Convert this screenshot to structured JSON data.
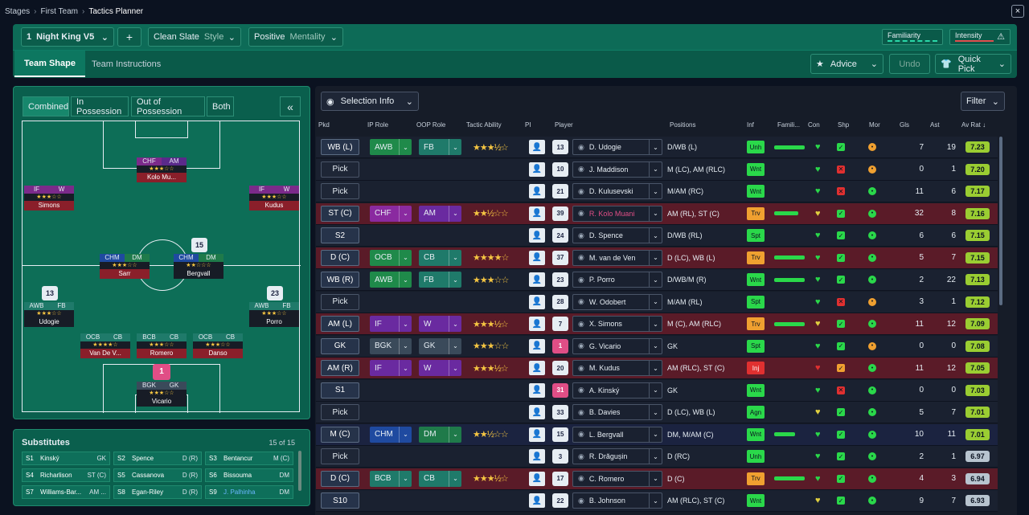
{
  "breadcrumb": {
    "item1": "Stages",
    "item2": "First Team",
    "item3": "Tactics Planner"
  },
  "toolbar": {
    "tactic_num": "1",
    "tactic_name": "Night King V5",
    "add": "+",
    "style_value": "Clean Slate",
    "style_label": "Style",
    "mentality_value": "Positive",
    "mentality_label": "Mentality",
    "familiarity": "Familiarity",
    "intensity": "Intensity",
    "advice": "Advice",
    "undo": "Undo",
    "quick_pick": "Quick Pick"
  },
  "tabs": {
    "shape": "Team Shape",
    "instructions": "Team Instructions"
  },
  "view": {
    "combined": "Combined",
    "in_possession": "In Possession",
    "out_possession": "Out of Possession",
    "both": "Both",
    "collapse": "«"
  },
  "pitch": {
    "players": [
      {
        "r1": "CHF",
        "r2": "AM",
        "stars": "★★★☆☆",
        "name": "Kolo Mu..."
      },
      {
        "r1": "IF",
        "r2": "W",
        "stars": "★★★☆☆",
        "name": "Simons"
      },
      {
        "r1": "IF",
        "r2": "W",
        "stars": "★★★☆☆",
        "name": "Kudus"
      },
      {
        "r1": "CHM",
        "r2": "DM",
        "stars": "★★★☆☆",
        "name": "Sarr"
      },
      {
        "r1": "CHM",
        "r2": "DM",
        "stars": "★★☆☆☆",
        "name": "Bergvall",
        "num": "15"
      },
      {
        "r1": "AWB",
        "r2": "FB",
        "stars": "★★★☆☆",
        "name": "Udogie",
        "num": "13"
      },
      {
        "r1": "AWB",
        "r2": "FB",
        "stars": "★★★☆☆",
        "name": "Porro",
        "num": "23"
      },
      {
        "r1": "OCB",
        "r2": "CB",
        "stars": "★★★★☆",
        "name": "Van De V..."
      },
      {
        "r1": "BCB",
        "r2": "CB",
        "stars": "★★★☆☆",
        "name": "Romero"
      },
      {
        "r1": "OCB",
        "r2": "CB",
        "stars": "★★★☆☆",
        "name": "Danso"
      },
      {
        "r1": "BGK",
        "r2": "GK",
        "stars": "★★★☆☆",
        "name": "Vicario",
        "num": "1"
      }
    ]
  },
  "subs": {
    "title": "Substitutes",
    "count": "15 of 15",
    "items": [
      {
        "code": "S1",
        "name": "Kinský",
        "pos": "GK"
      },
      {
        "code": "S2",
        "name": "Spence",
        "pos": "D (R)"
      },
      {
        "code": "S3",
        "name": "Bentancur",
        "pos": "M (C)"
      },
      {
        "code": "S4",
        "name": "Richarlison",
        "pos": "ST (C)"
      },
      {
        "code": "S5",
        "name": "Cassanova",
        "pos": "D (R)"
      },
      {
        "code": "S6",
        "name": "Bissouma",
        "pos": "DM"
      },
      {
        "code": "S7",
        "name": "Williams-Bar...",
        "pos": "AM ..."
      },
      {
        "code": "S8",
        "name": "Egan-Riley",
        "pos": "D (R)"
      },
      {
        "code": "S9",
        "name": "J. Palhinha",
        "pos": "DM"
      }
    ]
  },
  "table": {
    "selection_info": "Selection Info",
    "filter": "Filter",
    "headers": {
      "pkd": "Pkd",
      "ip": "IP Role",
      "oop": "OOP Role",
      "ability": "Tactic Ability",
      "pi": "PI",
      "player": "Player",
      "positions": "Positions",
      "inf": "Inf",
      "fam": "Famili...",
      "con": "Con",
      "shp": "Shp",
      "mor": "Mor",
      "gls": "Gls",
      "ast": "Ast",
      "avrat": "Av Rat"
    },
    "rows": [
      {
        "pkd": "WB (L)",
        "ip": "AWB",
        "oop": "FB",
        "stars": "★★★½☆",
        "num": "13",
        "player": "D. Udogie",
        "pos": "D/WB (L)",
        "inf": "Unh",
        "gls": "7",
        "ast": "19",
        "avr": "7.23"
      },
      {
        "pkd": "Pick",
        "ip": "",
        "oop": "",
        "stars": "",
        "num": "10",
        "player": "J. Maddison",
        "pos": "M (LC), AM (RLC)",
        "inf": "Wnt",
        "gls": "0",
        "ast": "1",
        "avr": "7.20"
      },
      {
        "pkd": "Pick",
        "ip": "",
        "oop": "",
        "stars": "",
        "num": "21",
        "player": "D. Kulusevski",
        "pos": "M/AM (RC)",
        "inf": "Wnt",
        "gls": "11",
        "ast": "6",
        "avr": "7.17"
      },
      {
        "pkd": "ST (C)",
        "ip": "CHF",
        "oop": "AM",
        "stars": "★★½☆☆",
        "num": "39",
        "player": "R. Kolo Muani",
        "pos": "AM (RL), ST (C)",
        "inf": "Trv",
        "gls": "32",
        "ast": "8",
        "avr": "7.16"
      },
      {
        "pkd": "S2",
        "ip": "",
        "oop": "",
        "stars": "",
        "num": "24",
        "player": "D. Spence",
        "pos": "D/WB (RL)",
        "inf": "Spt",
        "gls": "6",
        "ast": "6",
        "avr": "7.15"
      },
      {
        "pkd": "D (C)",
        "ip": "OCB",
        "oop": "CB",
        "stars": "★★★★☆",
        "num": "37",
        "player": "M. van de Ven",
        "pos": "D (LC), WB (L)",
        "inf": "Trv",
        "gls": "5",
        "ast": "7",
        "avr": "7.15"
      },
      {
        "pkd": "WB (R)",
        "ip": "AWB",
        "oop": "FB",
        "stars": "★★★☆☆",
        "num": "23",
        "player": "P. Porro",
        "pos": "D/WB/M (R)",
        "inf": "Wnt",
        "gls": "2",
        "ast": "22",
        "avr": "7.13"
      },
      {
        "pkd": "Pick",
        "ip": "",
        "oop": "",
        "stars": "",
        "num": "28",
        "player": "W. Odobert",
        "pos": "M/AM (RL)",
        "inf": "Spt",
        "gls": "3",
        "ast": "1",
        "avr": "7.12"
      },
      {
        "pkd": "AM (L)",
        "ip": "IF",
        "oop": "W",
        "stars": "★★★½☆",
        "num": "7",
        "player": "X. Simons",
        "pos": "M (C), AM (RLC)",
        "inf": "Trv",
        "gls": "11",
        "ast": "12",
        "avr": "7.09"
      },
      {
        "pkd": "GK",
        "ip": "BGK",
        "oop": "GK",
        "stars": "★★★☆☆",
        "num": "1",
        "player": "G. Vicario",
        "pos": "GK",
        "inf": "Spt",
        "gls": "0",
        "ast": "0",
        "avr": "7.08"
      },
      {
        "pkd": "AM (R)",
        "ip": "IF",
        "oop": "W",
        "stars": "★★★½☆",
        "num": "20",
        "player": "M. Kudus",
        "pos": "AM (RLC), ST (C)",
        "inf": "Inj",
        "gls": "11",
        "ast": "12",
        "avr": "7.05"
      },
      {
        "pkd": "S1",
        "ip": "",
        "oop": "",
        "stars": "",
        "num": "31",
        "player": "A. Kinský",
        "pos": "GK",
        "inf": "Wnt",
        "gls": "0",
        "ast": "0",
        "avr": "7.03"
      },
      {
        "pkd": "Pick",
        "ip": "",
        "oop": "",
        "stars": "",
        "num": "33",
        "player": "B. Davies",
        "pos": "D (LC), WB (L)",
        "inf": "Agn",
        "gls": "5",
        "ast": "7",
        "avr": "7.01"
      },
      {
        "pkd": "M (C)",
        "ip": "CHM",
        "oop": "DM",
        "stars": "★★½☆☆",
        "num": "15",
        "player": "L. Bergvall",
        "pos": "DM, M/AM (C)",
        "inf": "Wnt",
        "gls": "10",
        "ast": "11",
        "avr": "7.01"
      },
      {
        "pkd": "Pick",
        "ip": "",
        "oop": "",
        "stars": "",
        "num": "3",
        "player": "R. Drăgușin",
        "pos": "D (RC)",
        "inf": "Unh",
        "gls": "2",
        "ast": "1",
        "avr": "6.97"
      },
      {
        "pkd": "D (C)",
        "ip": "BCB",
        "oop": "CB",
        "stars": "★★★½☆",
        "num": "17",
        "player": "C. Romero",
        "pos": "D (C)",
        "inf": "Trv",
        "gls": "4",
        "ast": "3",
        "avr": "6.94"
      },
      {
        "pkd": "S10",
        "ip": "",
        "oop": "",
        "stars": "",
        "num": "22",
        "player": "B. Johnson",
        "pos": "AM (RLC), ST (C)",
        "inf": "Wnt",
        "gls": "9",
        "ast": "7",
        "avr": "6.93"
      }
    ]
  }
}
